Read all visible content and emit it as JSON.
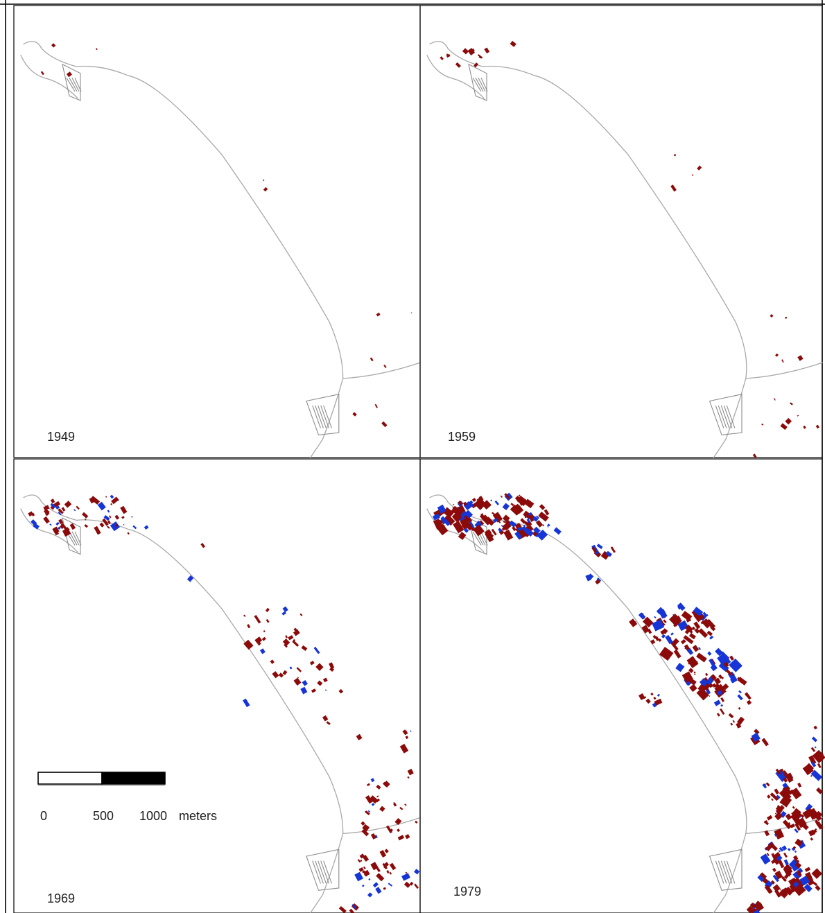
{
  "colors": {
    "pre_existing_buildings": "#8b0a0a",
    "new_buildings": "#1535d6",
    "coastline": "#a8a8a8",
    "frame": "#000000"
  },
  "panels": [
    {
      "id": "p1949",
      "year_label": "1949",
      "density": 0.09,
      "blue_share": 0.0
    },
    {
      "id": "p1959",
      "year_label": "1959",
      "density": 0.24,
      "blue_share": 0.04
    },
    {
      "id": "p1969",
      "year_label": "1969",
      "density": 0.62,
      "blue_share": 0.22
    },
    {
      "id": "p1979",
      "year_label": "1979",
      "density": 1.0,
      "blue_share": 0.3
    }
  ],
  "scale_bar": {
    "tick_labels": [
      "0",
      "500",
      "1000"
    ],
    "unit_label": "meters"
  }
}
